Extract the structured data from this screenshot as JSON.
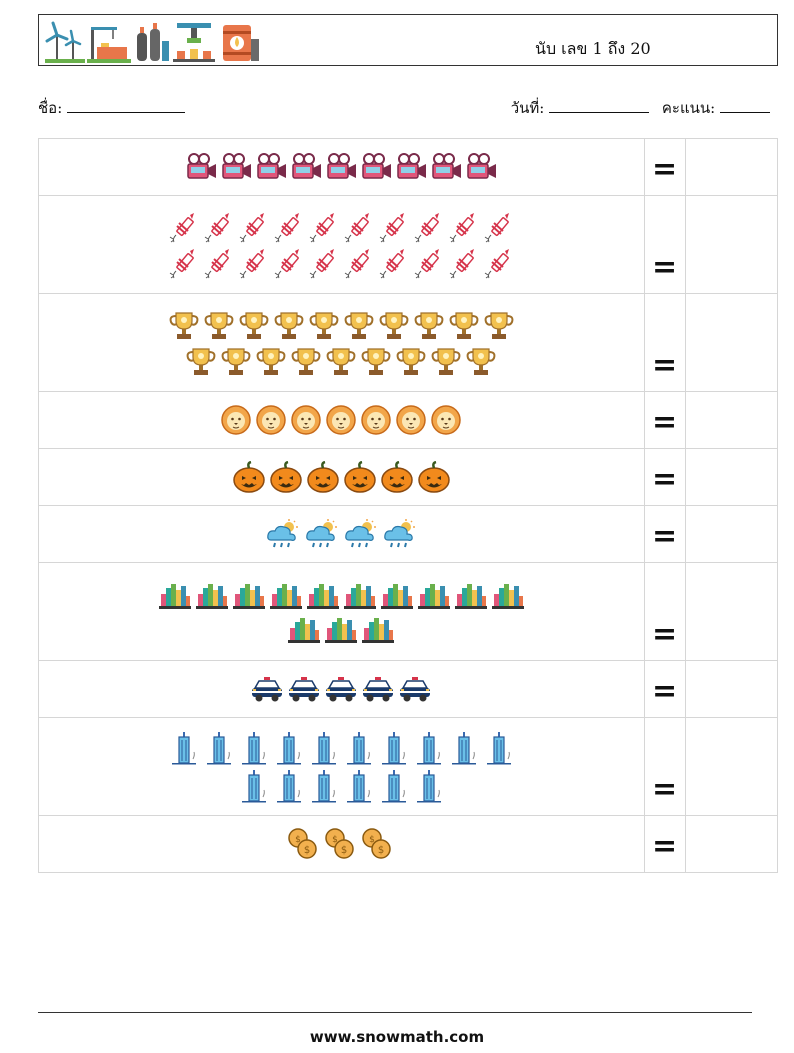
{
  "header": {
    "title": "นับ เลข 1 ถึง 20",
    "logo_icons": [
      "wind-turbine-icon",
      "crane-factory-icon",
      "gas-tanks-icon",
      "machine-press-icon",
      "oil-barrel-icon"
    ]
  },
  "info": {
    "name_label": "ชื่อ:",
    "date_label": "วันที่:",
    "score_label": "คะแนน:"
  },
  "rows": [
    {
      "icon": "movie-camera-icon",
      "count": 9,
      "per_line": 10,
      "equals": "="
    },
    {
      "icon": "firework-rocket-icon",
      "count": 20,
      "per_line": 10,
      "equals": "="
    },
    {
      "icon": "trophy-icon",
      "count": 19,
      "per_line": 10,
      "equals": "="
    },
    {
      "icon": "lion-icon",
      "count": 7,
      "per_line": 10,
      "equals": "="
    },
    {
      "icon": "pumpkin-icon",
      "count": 6,
      "per_line": 10,
      "equals": "="
    },
    {
      "icon": "rain-cloud-sun-icon",
      "count": 4,
      "per_line": 10,
      "equals": "="
    },
    {
      "icon": "city-chart-icon",
      "count": 13,
      "per_line": 10,
      "equals": "="
    },
    {
      "icon": "police-car-icon",
      "count": 5,
      "per_line": 10,
      "equals": "="
    },
    {
      "icon": "skyscraper-icon",
      "count": 16,
      "per_line": 10,
      "equals": "="
    },
    {
      "icon": "coins-icon",
      "count": 3,
      "per_line": 10,
      "equals": "="
    }
  ],
  "footer": {
    "website": "www.snowmath.com"
  }
}
